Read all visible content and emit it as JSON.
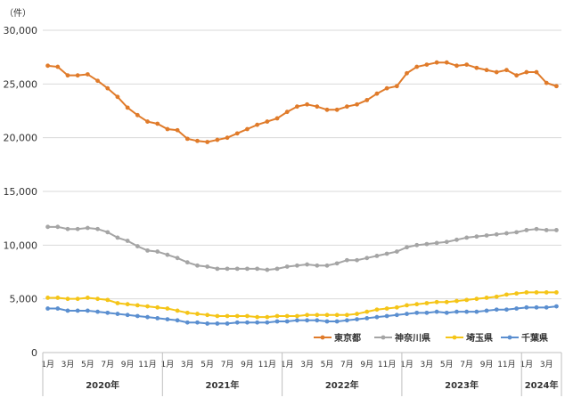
{
  "chart_data": {
    "type": "line",
    "unit_label": "（件）",
    "ylim": [
      0,
      30000
    ],
    "yticks": [
      0,
      5000,
      10000,
      15000,
      20000,
      25000,
      30000
    ],
    "ytick_labels": [
      "0",
      "5,000",
      "10,000",
      "15,000",
      "20,000",
      "25,000",
      "30,000"
    ],
    "grid": true,
    "legend_position": "bottom-right",
    "x": [
      "2020-01",
      "2020-02",
      "2020-03",
      "2020-04",
      "2020-05",
      "2020-06",
      "2020-07",
      "2020-08",
      "2020-09",
      "2020-10",
      "2020-11",
      "2020-12",
      "2021-01",
      "2021-02",
      "2021-03",
      "2021-04",
      "2021-05",
      "2021-06",
      "2021-07",
      "2021-08",
      "2021-09",
      "2021-10",
      "2021-11",
      "2021-12",
      "2022-01",
      "2022-02",
      "2022-03",
      "2022-04",
      "2022-05",
      "2022-06",
      "2022-07",
      "2022-08",
      "2022-09",
      "2022-10",
      "2022-11",
      "2022-12",
      "2023-01",
      "2023-02",
      "2023-03",
      "2023-04",
      "2023-05",
      "2023-06",
      "2023-07",
      "2023-08",
      "2023-09",
      "2023-10",
      "2023-11",
      "2023-12",
      "2024-01",
      "2024-02",
      "2024-03",
      "2024-04"
    ],
    "month_tick_labels": [
      {
        "i": 0,
        "label": "1月"
      },
      {
        "i": 2,
        "label": "3月"
      },
      {
        "i": 4,
        "label": "5月"
      },
      {
        "i": 6,
        "label": "7月"
      },
      {
        "i": 8,
        "label": "9月"
      },
      {
        "i": 10,
        "label": "11月"
      },
      {
        "i": 12,
        "label": "1月"
      },
      {
        "i": 14,
        "label": "3月"
      },
      {
        "i": 16,
        "label": "5月"
      },
      {
        "i": 18,
        "label": "7月"
      },
      {
        "i": 20,
        "label": "9月"
      },
      {
        "i": 22,
        "label": "11月"
      },
      {
        "i": 24,
        "label": "1月"
      },
      {
        "i": 26,
        "label": "3月"
      },
      {
        "i": 28,
        "label": "5月"
      },
      {
        "i": 30,
        "label": "7月"
      },
      {
        "i": 32,
        "label": "9月"
      },
      {
        "i": 34,
        "label": "11月"
      },
      {
        "i": 36,
        "label": "1月"
      },
      {
        "i": 38,
        "label": "3月"
      },
      {
        "i": 40,
        "label": "5月"
      },
      {
        "i": 42,
        "label": "7月"
      },
      {
        "i": 44,
        "label": "9月"
      },
      {
        "i": 46,
        "label": "11月"
      },
      {
        "i": 48,
        "label": "1月"
      },
      {
        "i": 50,
        "label": "3月"
      }
    ],
    "year_groups": [
      {
        "label": "2020年",
        "start": 0,
        "end": 11
      },
      {
        "label": "2021年",
        "start": 12,
        "end": 23
      },
      {
        "label": "2022年",
        "start": 24,
        "end": 35
      },
      {
        "label": "2023年",
        "start": 36,
        "end": 47
      },
      {
        "label": "2024年",
        "start": 48,
        "end": 51
      }
    ],
    "series": [
      {
        "name": "東京都",
        "color": "#E07B2A",
        "values": [
          26700,
          26600,
          25800,
          25800,
          25900,
          25300,
          24600,
          23800,
          22800,
          22100,
          21500,
          21300,
          20800,
          20700,
          19900,
          19700,
          19600,
          19800,
          20000,
          20400,
          20800,
          21200,
          21500,
          21800,
          22400,
          22900,
          23100,
          22900,
          22600,
          22600,
          22900,
          23100,
          23500,
          24100,
          24600,
          24800,
          26000,
          26600,
          26800,
          27000,
          27000,
          26700,
          26800,
          26500,
          26300,
          26100,
          26300,
          25800,
          26100,
          26100,
          25100,
          24800
        ]
      },
      {
        "name": "神奈川県",
        "color": "#A5A5A5",
        "values": [
          11700,
          11700,
          11500,
          11500,
          11600,
          11500,
          11200,
          10700,
          10400,
          9900,
          9500,
          9400,
          9100,
          8800,
          8400,
          8100,
          8000,
          7800,
          7800,
          7800,
          7800,
          7800,
          7700,
          7800,
          8000,
          8100,
          8200,
          8100,
          8100,
          8300,
          8600,
          8600,
          8800,
          9000,
          9200,
          9400,
          9800,
          10000,
          10100,
          10200,
          10300,
          10500,
          10700,
          10800,
          10900,
          11000,
          11100,
          11200,
          11400,
          11500,
          11400,
          11400
        ]
      },
      {
        "name": "埼玉県",
        "color": "#F5C518",
        "values": [
          5100,
          5100,
          5000,
          5000,
          5100,
          5000,
          4900,
          4600,
          4500,
          4400,
          4300,
          4200,
          4100,
          3900,
          3700,
          3600,
          3500,
          3400,
          3400,
          3400,
          3400,
          3300,
          3300,
          3400,
          3400,
          3400,
          3500,
          3500,
          3500,
          3500,
          3500,
          3600,
          3800,
          4000,
          4100,
          4200,
          4400,
          4500,
          4600,
          4700,
          4700,
          4800,
          4900,
          5000,
          5100,
          5200,
          5400,
          5500,
          5600,
          5600,
          5600,
          5600
        ]
      },
      {
        "name": "千葉県",
        "color": "#5B8FD0",
        "values": [
          4100,
          4100,
          3900,
          3900,
          3900,
          3800,
          3700,
          3600,
          3500,
          3400,
          3300,
          3200,
          3100,
          3000,
          2800,
          2800,
          2700,
          2700,
          2700,
          2800,
          2800,
          2800,
          2800,
          2900,
          2900,
          3000,
          3000,
          3000,
          2900,
          2900,
          3000,
          3100,
          3200,
          3300,
          3400,
          3500,
          3600,
          3700,
          3700,
          3800,
          3700,
          3800,
          3800,
          3800,
          3900,
          4000,
          4000,
          4100,
          4200,
          4200,
          4200,
          4300
        ]
      }
    ]
  }
}
